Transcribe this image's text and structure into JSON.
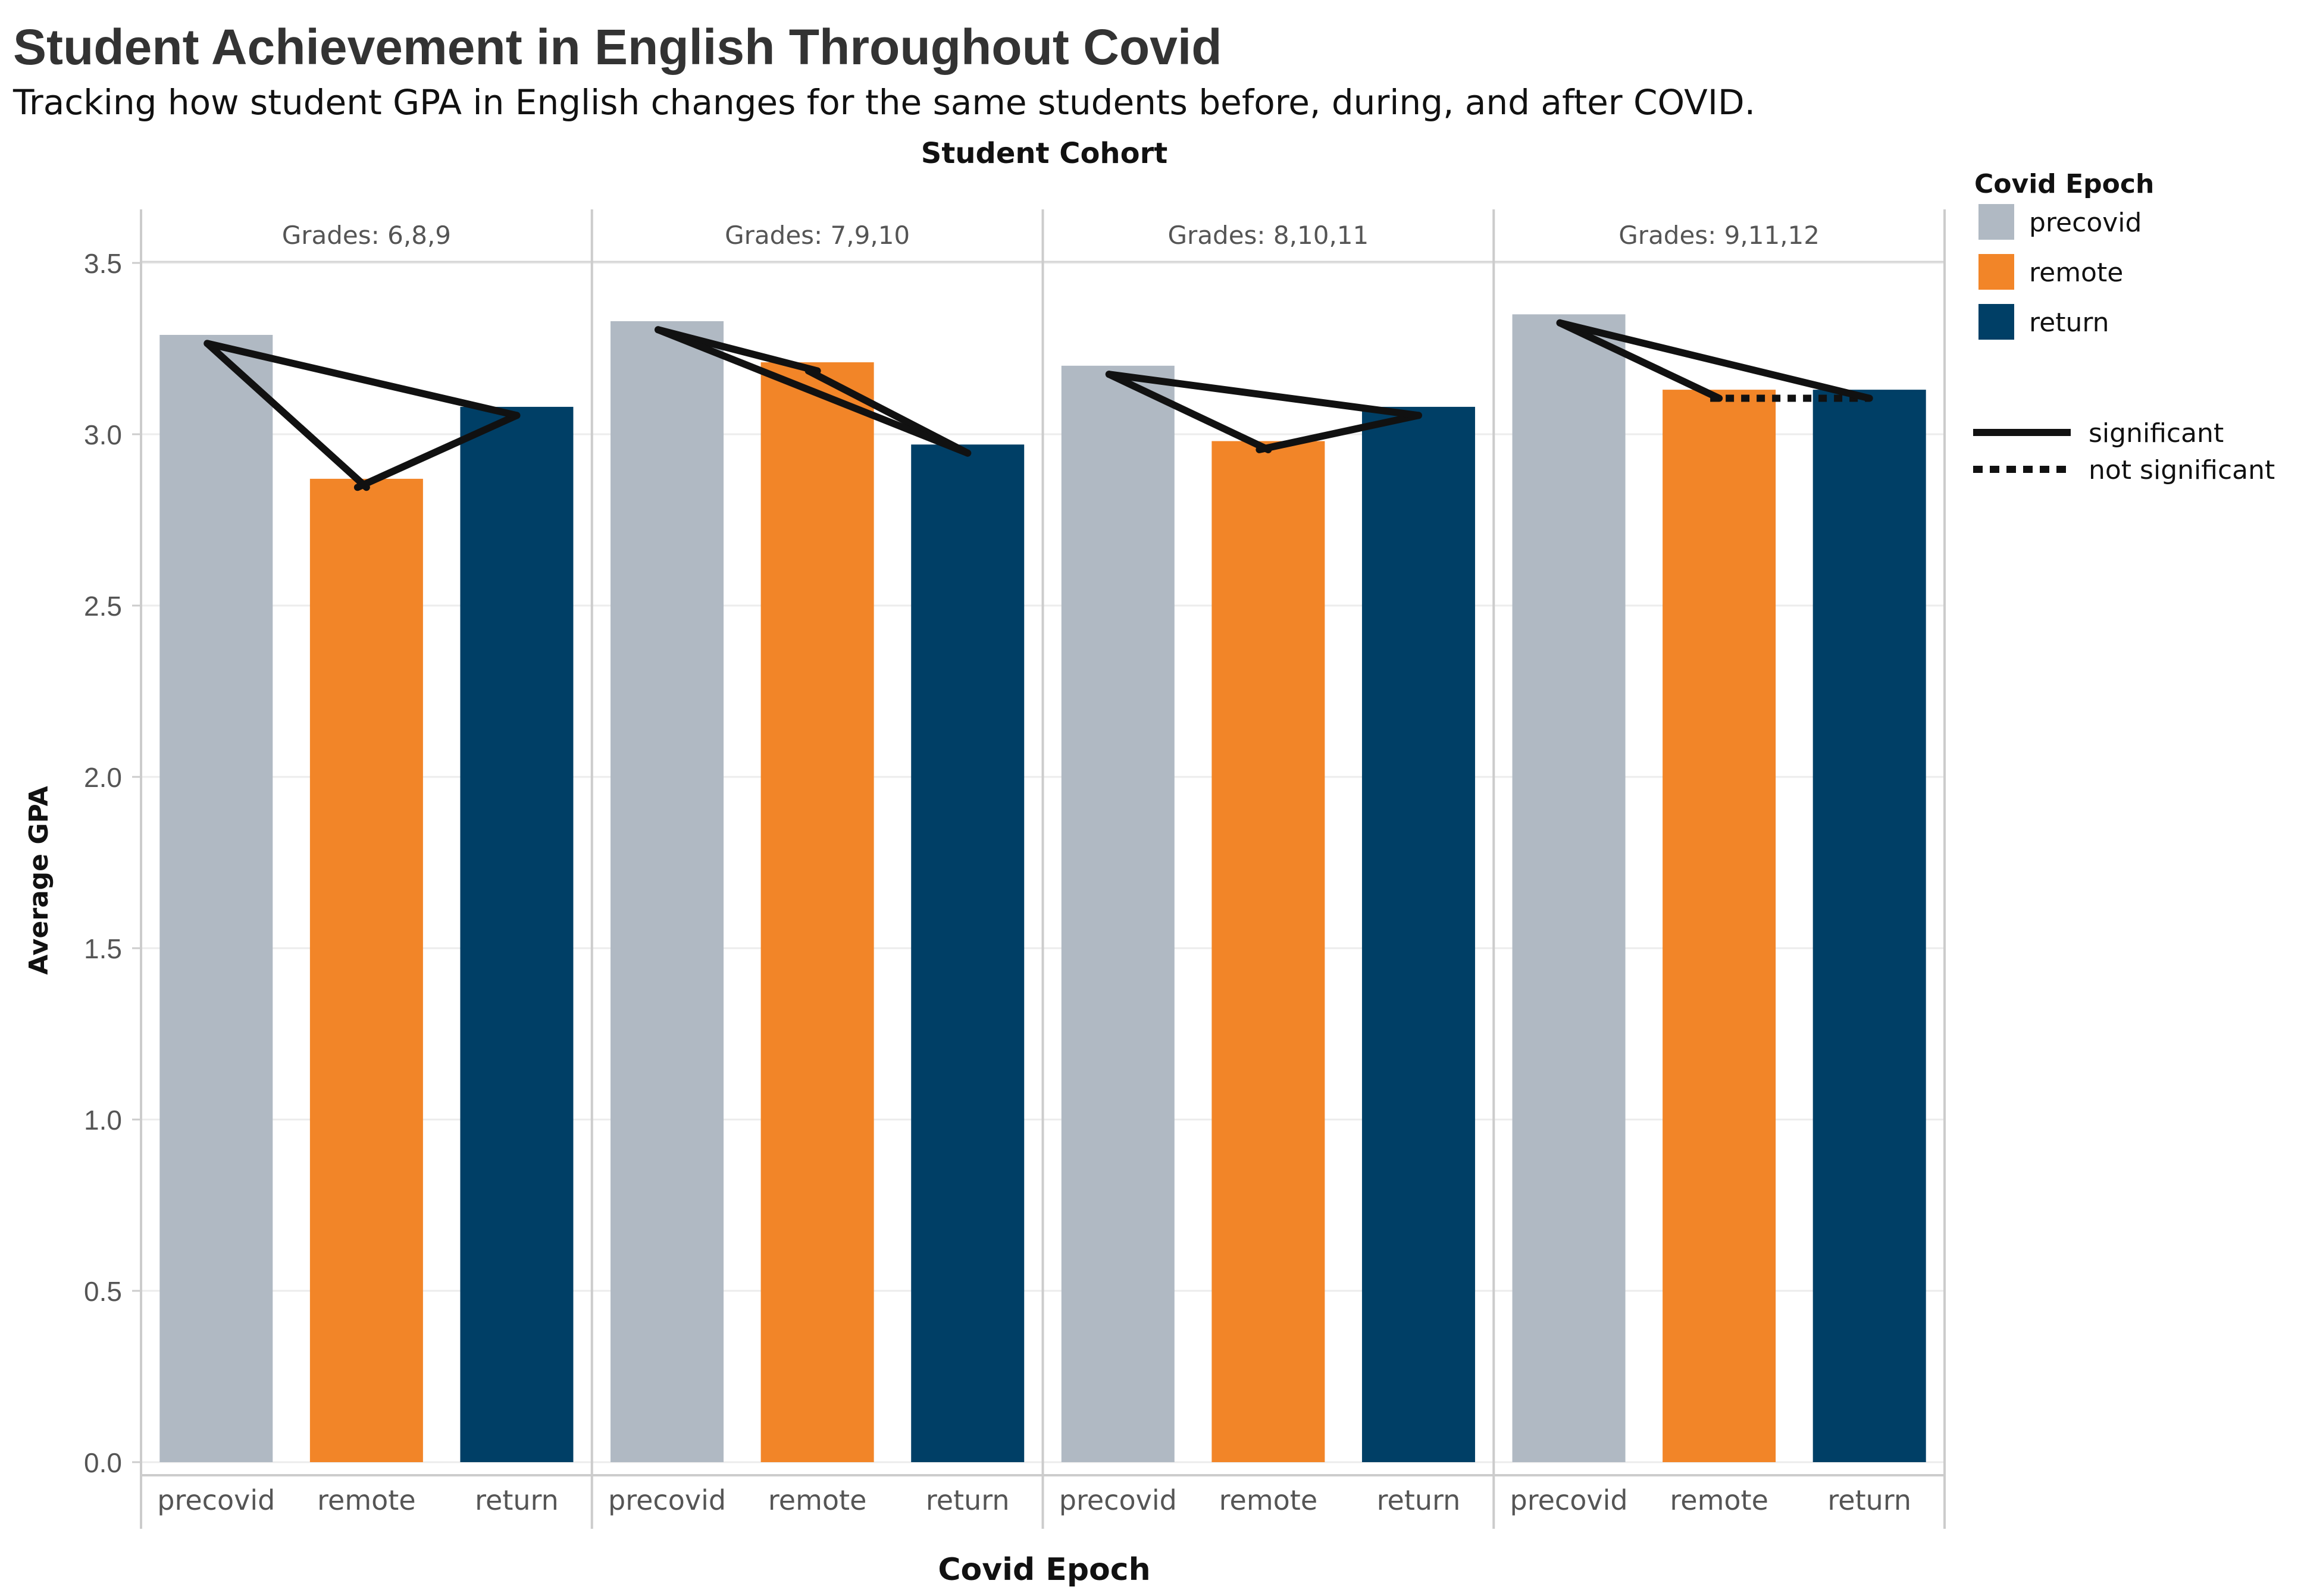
{
  "chart_data": {
    "type": "bar",
    "title": "Student Achievement in English Throughout Covid",
    "subtitle": "Tracking how student GPA in English changes for the same students before, during, and after COVID.",
    "facet_title": "Student Cohort",
    "xlabel": "Covid Epoch",
    "ylabel": "Average GPA",
    "ylim": [
      0,
      3.5
    ],
    "yticks": [
      "0.0",
      "0.5",
      "1.0",
      "1.5",
      "2.0",
      "2.5",
      "3.0",
      "3.5"
    ],
    "categories": [
      "precovid",
      "remote",
      "return"
    ],
    "colors": {
      "precovid": "#b0b9c3",
      "remote": "#f28528",
      "return": "#003f66"
    },
    "grid": true,
    "facets": [
      {
        "name": "Grades: 6,8,9",
        "values": [
          3.29,
          2.87,
          3.08
        ],
        "lines": [
          {
            "from": 0,
            "to": 1,
            "style": "significant"
          },
          {
            "from": 1,
            "to": 2,
            "style": "significant"
          },
          {
            "from": 0,
            "to": 2,
            "style": "significant"
          }
        ]
      },
      {
        "name": "Grades: 7,9,10",
        "values": [
          3.33,
          3.21,
          2.97
        ],
        "lines": [
          {
            "from": 0,
            "to": 1,
            "style": "significant"
          },
          {
            "from": 1,
            "to": 2,
            "style": "significant"
          },
          {
            "from": 0,
            "to": 2,
            "style": "significant"
          }
        ]
      },
      {
        "name": "Grades: 8,10,11",
        "values": [
          3.2,
          2.98,
          3.08
        ],
        "lines": [
          {
            "from": 0,
            "to": 1,
            "style": "significant"
          },
          {
            "from": 1,
            "to": 2,
            "style": "significant"
          },
          {
            "from": 0,
            "to": 2,
            "style": "significant"
          }
        ]
      },
      {
        "name": "Grades: 9,11,12",
        "values": [
          3.35,
          3.13,
          3.13
        ],
        "lines": [
          {
            "from": 0,
            "to": 1,
            "style": "significant"
          },
          {
            "from": 1,
            "to": 2,
            "style": "not significant"
          },
          {
            "from": 0,
            "to": 2,
            "style": "significant"
          }
        ]
      }
    ],
    "legend": {
      "title": "Covid Epoch",
      "placement": "right",
      "items": [
        "precovid",
        "remote",
        "return"
      ],
      "line_items": [
        "significant",
        "not significant"
      ]
    }
  }
}
